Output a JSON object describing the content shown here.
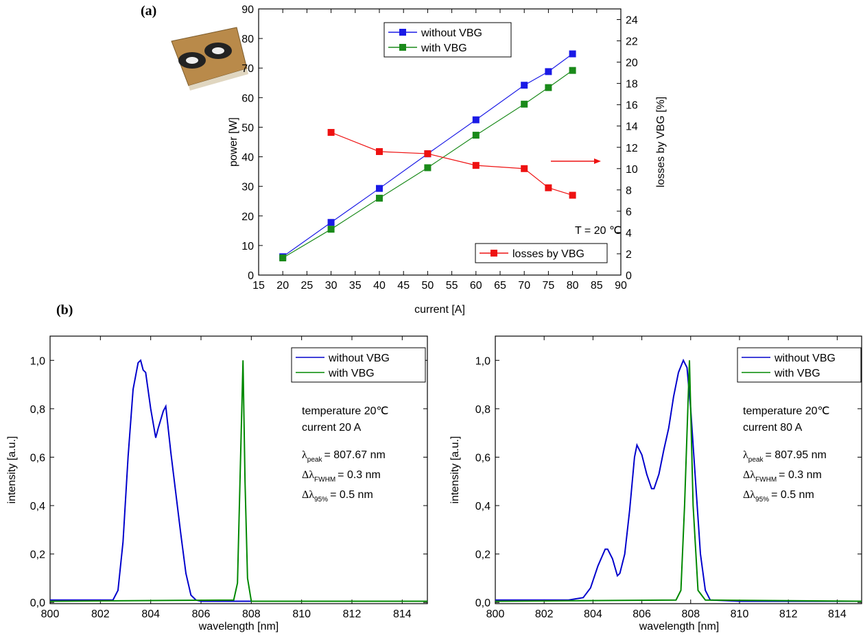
{
  "panel_labels": [
    "(a)",
    "(b)"
  ],
  "chart_data": [
    {
      "type": "line",
      "markers": true,
      "x_label": "current [A]",
      "y_label": "power [W]",
      "y2_label": "losses by VBG [%]",
      "annotations": [
        "T = 20 ℃"
      ],
      "x": [
        20,
        30,
        40,
        50,
        60,
        70,
        75,
        80
      ],
      "xlim": [
        15,
        90
      ],
      "xticks": [
        15,
        20,
        25,
        30,
        35,
        40,
        45,
        50,
        55,
        60,
        65,
        70,
        75,
        80,
        85,
        90
      ],
      "ylim": [
        0,
        90
      ],
      "yticks": [
        0,
        10,
        20,
        30,
        40,
        50,
        60,
        70,
        80,
        90
      ],
      "y2lim": [
        0,
        25
      ],
      "y2ticks": [
        0,
        2,
        4,
        6,
        8,
        10,
        12,
        14,
        16,
        18,
        20,
        22,
        24
      ],
      "series": [
        {
          "name": "without VBG",
          "color": "#1a1ae6",
          "legend": "upper-center",
          "values": [
            6.2,
            17.8,
            29.3,
            41.0,
            52.5,
            64.2,
            68.8,
            74.8
          ]
        },
        {
          "name": "with VBG",
          "color": "#1a8a1a",
          "legend": "upper-center",
          "values": [
            5.8,
            15.5,
            26.0,
            36.3,
            47.3,
            57.8,
            63.4,
            69.2
          ]
        },
        {
          "name": "losses by VBG",
          "color": "#ee1111",
          "legend": "lower-right",
          "axis": "y2",
          "values": [
            null,
            13.4,
            11.6,
            11.4,
            10.3,
            10.0,
            8.2,
            7.5
          ]
        }
      ]
    },
    {
      "type": "line",
      "legend": "upper-right",
      "mirror_ticks": true,
      "x_label": "wavelength [nm]",
      "y_label": "intensity [a.u.]",
      "annotations": [
        "temperature 20℃",
        "current 20 A"
      ],
      "parameters": [
        {
          "symbol": "λ",
          "sub": "peak",
          "text": "= 807.67 nm"
        },
        {
          "symbol": "Δλ",
          "sub": "FWHM",
          "text": "= 0.3 nm"
        },
        {
          "symbol": "Δλ",
          "sub": "95%",
          "text": "= 0.5 nm"
        }
      ],
      "xlim": [
        800,
        815
      ],
      "xticks": [
        800,
        802,
        804,
        806,
        808,
        810,
        812,
        814
      ],
      "ylim": [
        -0.005,
        1.1
      ],
      "yticks": [
        {
          "value": 0,
          "label": "0,0"
        },
        {
          "value": 0.2,
          "label": "0,2"
        },
        {
          "value": 0.4,
          "label": "0,4"
        },
        {
          "value": 0.6,
          "label": "0,6"
        },
        {
          "value": 0.8,
          "label": "0,8"
        },
        {
          "value": 1.0,
          "label": "1,0"
        }
      ],
      "series": [
        {
          "name": "without VBG",
          "color": "#0000cc",
          "x": [
            800,
            802,
            802.5,
            802.7,
            802.9,
            803.1,
            803.3,
            803.5,
            803.6,
            803.7,
            803.8,
            804.0,
            804.2,
            804.3,
            804.5,
            804.6,
            804.8,
            805.0,
            805.2,
            805.4,
            805.6,
            805.8,
            806,
            810,
            815
          ],
          "values": [
            0.01,
            0.01,
            0.01,
            0.05,
            0.25,
            0.6,
            0.88,
            0.99,
            1.0,
            0.96,
            0.95,
            0.8,
            0.68,
            0.72,
            0.79,
            0.81,
            0.62,
            0.45,
            0.28,
            0.12,
            0.03,
            0.01,
            0.005,
            0.005,
            0.005
          ]
        },
        {
          "name": "with VBG",
          "color": "#008800",
          "x": [
            800,
            807.3,
            807.45,
            807.55,
            807.67,
            807.75,
            807.85,
            808,
            815
          ],
          "values": [
            0.005,
            0.01,
            0.08,
            0.5,
            1.0,
            0.5,
            0.1,
            0.005,
            0.005
          ]
        }
      ]
    },
    {
      "type": "line",
      "legend": "upper-right",
      "mirror_ticks": true,
      "x_label": "wavelength [nm]",
      "y_label": "intensity [a.u.]",
      "annotations": [
        "temperature 20℃",
        "current 80 A"
      ],
      "parameters": [
        {
          "symbol": "λ",
          "sub": "peak",
          "text": "= 807.95 nm"
        },
        {
          "symbol": "Δλ",
          "sub": "FWHM",
          "text": "= 0.3 nm"
        },
        {
          "symbol": "Δλ",
          "sub": "95%",
          "text": "= 0.5 nm"
        }
      ],
      "xlim": [
        800,
        815
      ],
      "xticks": [
        800,
        802,
        804,
        806,
        808,
        810,
        812,
        814
      ],
      "ylim": [
        -0.005,
        1.1
      ],
      "yticks": [
        {
          "value": 0,
          "label": "0,0"
        },
        {
          "value": 0.2,
          "label": "0,2"
        },
        {
          "value": 0.4,
          "label": "0,4"
        },
        {
          "value": 0.6,
          "label": "0,6"
        },
        {
          "value": 0.8,
          "label": "0,8"
        },
        {
          "value": 1.0,
          "label": "1,0"
        }
      ],
      "series": [
        {
          "name": "without VBG",
          "color": "#0000cc",
          "x": [
            800,
            803,
            803.6,
            803.9,
            804.2,
            804.5,
            804.6,
            804.8,
            805.0,
            805.1,
            805.3,
            805.5,
            805.7,
            805.8,
            806.0,
            806.2,
            806.4,
            806.5,
            806.7,
            806.9,
            807.1,
            807.3,
            807.5,
            807.7,
            807.85,
            808.0,
            808.2,
            808.4,
            808.6,
            808.8,
            810,
            815
          ],
          "values": [
            0.01,
            0.01,
            0.02,
            0.06,
            0.15,
            0.22,
            0.22,
            0.18,
            0.11,
            0.12,
            0.2,
            0.38,
            0.6,
            0.65,
            0.61,
            0.53,
            0.47,
            0.47,
            0.53,
            0.63,
            0.72,
            0.85,
            0.95,
            1.0,
            0.97,
            0.8,
            0.5,
            0.2,
            0.05,
            0.01,
            0.005,
            0.005
          ]
        },
        {
          "name": "with VBG",
          "color": "#008800",
          "x": [
            800,
            807.4,
            807.6,
            807.75,
            807.95,
            808.1,
            808.3,
            808.6,
            815
          ],
          "values": [
            0.005,
            0.01,
            0.05,
            0.4,
            1.0,
            0.4,
            0.05,
            0.01,
            0.005
          ]
        }
      ]
    }
  ]
}
